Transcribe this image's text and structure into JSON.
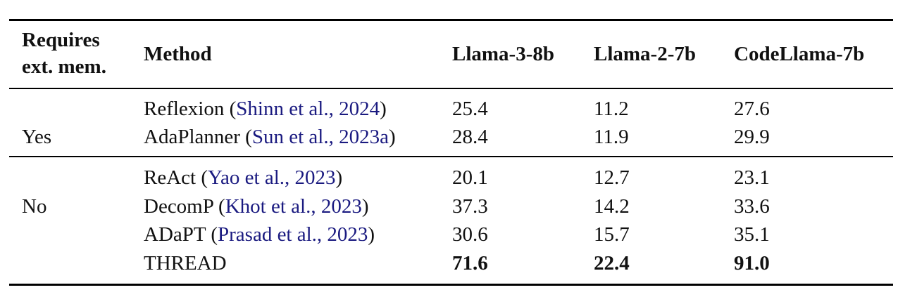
{
  "table": {
    "headers": {
      "requires_line1": "Requires",
      "requires_line2": "ext. mem.",
      "method": "Method",
      "col1": "Llama-3-8b",
      "col2": "Llama-2-7b",
      "col3": "CodeLlama-7b"
    },
    "groups": [
      {
        "label": "Yes",
        "rows": [
          {
            "name": "Reflexion",
            "cite": "Shinn et al., 2024",
            "v1": "25.4",
            "v2": "11.2",
            "v3": "27.6"
          },
          {
            "name": "AdaPlanner",
            "cite": "Sun et al., 2023a",
            "v1": "28.4",
            "v2": "11.9",
            "v3": "29.9"
          }
        ]
      },
      {
        "label": "No",
        "rows": [
          {
            "name": "ReAct",
            "cite": "Yao et al., 2023",
            "v1": "20.1",
            "v2": "12.7",
            "v3": "23.1"
          },
          {
            "name": "DecomP",
            "cite": "Khot et al., 2023",
            "v1": "37.3",
            "v2": "14.2",
            "v3": "33.6"
          },
          {
            "name": "ADaPT",
            "cite": "Prasad et al., 2023",
            "v1": "30.6",
            "v2": "15.7",
            "v3": "35.1"
          },
          {
            "name": "THREAD",
            "cite": "",
            "v1": "71.6",
            "v2": "22.4",
            "v3": "91.0"
          }
        ]
      }
    ]
  }
}
